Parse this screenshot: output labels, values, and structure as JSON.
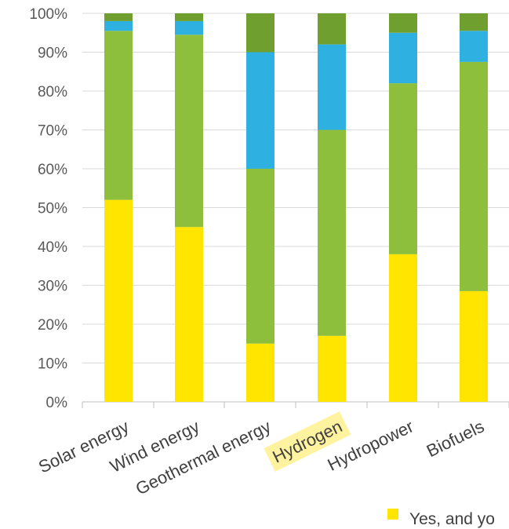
{
  "chart_data": {
    "type": "bar",
    "stacked": true,
    "percent_stacked": true,
    "categories": [
      "Solar energy",
      "Wind energy",
      "Geothermal energy",
      "Hydrogen",
      "Hydropower",
      "Biofuels"
    ],
    "series": [
      {
        "name": "Yes, and yo",
        "color": "#FFE500",
        "values": [
          52,
          45,
          15,
          17,
          38,
          28.5
        ]
      },
      {
        "name": "",
        "color": "#8DBE3C",
        "values": [
          43.5,
          49.5,
          45,
          53,
          44,
          59
        ]
      },
      {
        "name": "",
        "color": "#2EB1E0",
        "values": [
          2.5,
          3.5,
          30,
          22,
          13,
          8
        ]
      },
      {
        "name": "",
        "color": "#6E9F2F",
        "values": [
          2,
          2,
          10,
          8,
          5,
          4.5
        ]
      }
    ],
    "y_ticks": [
      "0%",
      "10%",
      "20%",
      "30%",
      "40%",
      "50%",
      "60%",
      "70%",
      "80%",
      "90%",
      "100%"
    ],
    "ylim": [
      0,
      100
    ],
    "grid": true,
    "highlighted_category": "Hydrogen",
    "highlight_color": "#FFF3A0",
    "legend_position": "bottom",
    "title": "",
    "xlabel": "",
    "ylabel": ""
  }
}
